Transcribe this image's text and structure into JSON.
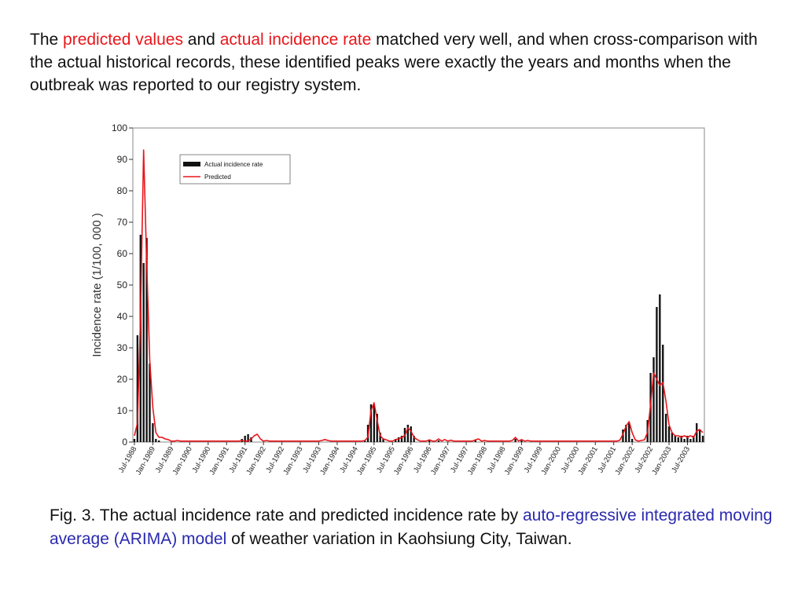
{
  "intro": {
    "p1": "The ",
    "h1": "predicted values",
    "p2": " and ",
    "h2": "actual incidence rate",
    "p3": " matched very well, and when cross-comparison with the actual historical records, these identified peaks were exactly the years and months when the outbreak was reported to our registry system."
  },
  "caption": {
    "p1": "Fig. 3. The actual incidence rate and predicted incidence rate by ",
    "h1": "auto-regressive integrated moving average (ARIMA) model",
    "p2": " of weather variation in Kaohsiung City, Taiwan."
  },
  "colors": {
    "highlight_red": "#e8161b",
    "highlight_blue": "#2a2ab0",
    "actual": "#111111",
    "predicted": "#e8161b"
  },
  "chart_data": {
    "type": "bar",
    "ylabel": "Incidence rate  (1/100, 000 )",
    "xlabel": "",
    "ylim": [
      0,
      100
    ],
    "yticks": [
      0,
      10,
      20,
      30,
      40,
      50,
      60,
      70,
      80,
      90,
      100
    ],
    "x_start": "1988-07",
    "x_end": "2003-12",
    "xtick_labels": [
      "Jul-1988",
      "Jan-1989",
      "Jul-1989",
      "Jan-1990",
      "Jul-1990",
      "Jan-1991",
      "Jul-1991",
      "Jan-1992",
      "Jul-1992",
      "Jan-1993",
      "Jul-1993",
      "Jan-1994",
      "Jul-1994",
      "Jan-1995",
      "Jul-1995",
      "Jan-1996",
      "Jul-1996",
      "Jan-1997",
      "Jul-1997",
      "Jan-1998",
      "Jul-1998",
      "Jan-1999",
      "Jul-1999",
      "Jan-2000",
      "Jul-2000",
      "Jan-2001",
      "Jul-2001",
      "Jan-2002",
      "Jul-2002",
      "Jan-2003",
      "Jul-2003"
    ],
    "legend_position": "top-left",
    "grid": false,
    "series": [
      {
        "name": "Actual incidence rate",
        "style": "bars",
        "points": [
          [
            "1988-07",
            1
          ],
          [
            "1988-08",
            34
          ],
          [
            "1988-09",
            66
          ],
          [
            "1988-10",
            57
          ],
          [
            "1988-11",
            65
          ],
          [
            "1988-12",
            25
          ],
          [
            "1989-01",
            6
          ],
          [
            "1989-02",
            1
          ],
          [
            "1989-03",
            0.5
          ],
          [
            "1991-06",
            1
          ],
          [
            "1991-07",
            2
          ],
          [
            "1991-08",
            2.5
          ],
          [
            "1991-09",
            1.5
          ],
          [
            "1994-10",
            0.5
          ],
          [
            "1994-11",
            5.5
          ],
          [
            "1994-12",
            12
          ],
          [
            "1995-01",
            12
          ],
          [
            "1995-02",
            9
          ],
          [
            "1995-03",
            3
          ],
          [
            "1995-04",
            1
          ],
          [
            "1995-08",
            1
          ],
          [
            "1995-09",
            1.5
          ],
          [
            "1995-10",
            2
          ],
          [
            "1995-11",
            4.5
          ],
          [
            "1995-12",
            5.5
          ],
          [
            "1996-01",
            5
          ],
          [
            "1996-02",
            2
          ],
          [
            "1996-07",
            0.5
          ],
          [
            "1996-10",
            0.5
          ],
          [
            "1997-10",
            0.5
          ],
          [
            "1998-11",
            1
          ],
          [
            "1999-01",
            0.5
          ],
          [
            "2001-10",
            4
          ],
          [
            "2001-11",
            5.5
          ],
          [
            "2001-12",
            6
          ],
          [
            "2002-01",
            1
          ],
          [
            "2002-06",
            7
          ],
          [
            "2002-07",
            22
          ],
          [
            "2002-08",
            27
          ],
          [
            "2002-09",
            43
          ],
          [
            "2002-10",
            47
          ],
          [
            "2002-11",
            31
          ],
          [
            "2002-12",
            9
          ],
          [
            "2003-01",
            5
          ],
          [
            "2003-02",
            3
          ],
          [
            "2003-03",
            2
          ],
          [
            "2003-04",
            1.5
          ],
          [
            "2003-05",
            2
          ],
          [
            "2003-06",
            1
          ],
          [
            "2003-07",
            2
          ],
          [
            "2003-08",
            1
          ],
          [
            "2003-09",
            2
          ],
          [
            "2003-10",
            6
          ],
          [
            "2003-11",
            4
          ],
          [
            "2003-12",
            2
          ]
        ]
      },
      {
        "name": "Predicted",
        "style": "line",
        "points": [
          [
            "1988-07",
            2
          ],
          [
            "1988-08",
            6
          ],
          [
            "1988-09",
            40
          ],
          [
            "1988-10",
            93
          ],
          [
            "1988-11",
            57
          ],
          [
            "1988-12",
            26
          ],
          [
            "1989-01",
            11
          ],
          [
            "1989-02",
            3
          ],
          [
            "1989-03",
            1.5
          ],
          [
            "1989-04",
            1.5
          ],
          [
            "1989-05",
            1
          ],
          [
            "1989-06",
            0.8
          ],
          [
            "1989-09",
            0.5
          ],
          [
            "1991-06",
            0.5
          ],
          [
            "1991-09",
            1
          ],
          [
            "1991-10",
            2
          ],
          [
            "1991-11",
            2.5
          ],
          [
            "1991-12",
            1
          ],
          [
            "1992-02",
            0.5
          ],
          [
            "1993-08",
            0.5
          ],
          [
            "1993-09",
            0.8
          ],
          [
            "1993-10",
            0.5
          ],
          [
            "1994-10",
            0.5
          ],
          [
            "1994-11",
            1.5
          ],
          [
            "1994-12",
            10
          ],
          [
            "1995-01",
            12.5
          ],
          [
            "1995-02",
            7
          ],
          [
            "1995-03",
            2
          ],
          [
            "1995-04",
            1
          ],
          [
            "1995-05",
            0.7
          ],
          [
            "1995-08",
            0.8
          ],
          [
            "1995-09",
            1
          ],
          [
            "1995-10",
            1.5
          ],
          [
            "1995-11",
            2
          ],
          [
            "1995-12",
            4.5
          ],
          [
            "1996-01",
            3.5
          ],
          [
            "1996-02",
            1.5
          ],
          [
            "1996-03",
            0.8
          ],
          [
            "1996-07",
            0.7
          ],
          [
            "1996-10",
            1
          ],
          [
            "1996-12",
            0.8
          ],
          [
            "1997-02",
            0.6
          ],
          [
            "1997-10",
            0.7
          ],
          [
            "1997-11",
            1
          ],
          [
            "1998-01",
            0.5
          ],
          [
            "1998-10",
            0.5
          ],
          [
            "1998-11",
            1.5
          ],
          [
            "1999-01",
            0.8
          ],
          [
            "1999-03",
            0.5
          ],
          [
            "2001-09",
            0.6
          ],
          [
            "2001-10",
            2.5
          ],
          [
            "2001-11",
            5
          ],
          [
            "2001-12",
            6.5
          ],
          [
            "2002-01",
            3
          ],
          [
            "2002-02",
            0.7
          ],
          [
            "2002-04",
            0.5
          ],
          [
            "2002-05",
            0.7
          ],
          [
            "2002-06",
            3
          ],
          [
            "2002-07",
            12
          ],
          [
            "2002-08",
            22
          ],
          [
            "2002-09",
            20
          ],
          [
            "2002-10",
            18
          ],
          [
            "2002-11",
            19
          ],
          [
            "2002-12",
            13
          ],
          [
            "2003-01",
            5.5
          ],
          [
            "2003-02",
            3
          ],
          [
            "2003-03",
            2
          ],
          [
            "2003-04",
            2
          ],
          [
            "2003-05",
            1.5
          ],
          [
            "2003-06",
            2
          ],
          [
            "2003-07",
            1.5
          ],
          [
            "2003-08",
            2
          ],
          [
            "2003-09",
            1.5
          ],
          [
            "2003-10",
            3.5
          ],
          [
            "2003-11",
            4
          ],
          [
            "2003-12",
            3
          ]
        ]
      }
    ]
  }
}
